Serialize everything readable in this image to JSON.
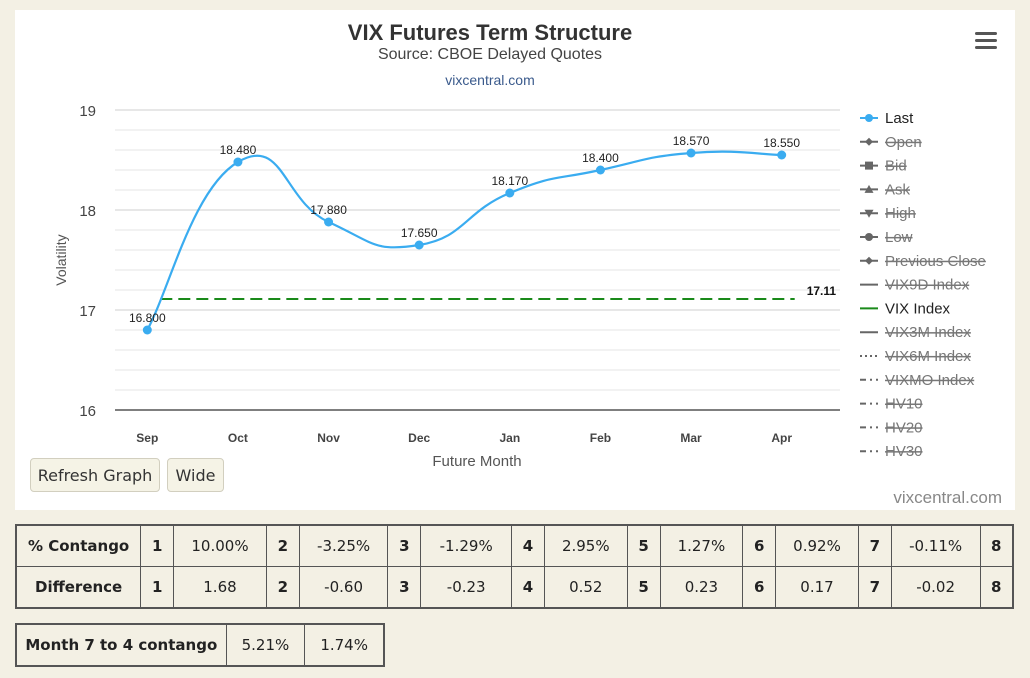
{
  "chart_data": {
    "type": "line",
    "title": "VIX Futures Term Structure",
    "subtitle": "Source: CBOE Delayed Quotes",
    "link": "vixcentral.com",
    "credit": "vixcentral.com",
    "xlabel": "Future Month",
    "ylabel": "Volatility",
    "categories": [
      "Sep",
      "Oct",
      "Nov",
      "Dec",
      "Jan",
      "Feb",
      "Mar",
      "Apr"
    ],
    "ylim": [
      16,
      19
    ],
    "yticks": [
      "16",
      "17",
      "18",
      "19"
    ],
    "grid": true,
    "series": [
      {
        "name": "Last",
        "values": [
          16.8,
          18.48,
          17.88,
          17.65,
          18.17,
          18.4,
          18.57,
          18.55
        ],
        "labels": [
          "16.800",
          "18.480",
          "17.880",
          "17.650",
          "18.170",
          "18.400",
          "18.570",
          "18.550"
        ],
        "color": "#3aacf0"
      },
      {
        "name": "VIX Index",
        "value": 17.11,
        "label": "17.11",
        "color": "#1a8a1a",
        "dashed": true
      }
    ],
    "legend": {
      "position": "right",
      "items": [
        {
          "name": "Last",
          "marker": "circle",
          "line": "solid",
          "hidden": false,
          "color": "#3aacf0"
        },
        {
          "name": "Open",
          "marker": "diamond",
          "line": "solid",
          "hidden": true,
          "color": "#666666"
        },
        {
          "name": "Bid",
          "marker": "square",
          "line": "solid",
          "hidden": true,
          "color": "#666666"
        },
        {
          "name": "Ask",
          "marker": "triangle",
          "line": "solid",
          "hidden": true,
          "color": "#666666"
        },
        {
          "name": "High",
          "marker": "triangle-down",
          "line": "solid",
          "hidden": true,
          "color": "#666666"
        },
        {
          "name": "Low",
          "marker": "circle",
          "line": "solid",
          "hidden": true,
          "color": "#666666"
        },
        {
          "name": "Previous Close",
          "marker": "diamond",
          "line": "solid",
          "hidden": true,
          "color": "#666666"
        },
        {
          "name": "VIX9D Index",
          "marker": "none",
          "line": "solid",
          "hidden": true,
          "color": "#666666"
        },
        {
          "name": "VIX Index",
          "marker": "none",
          "line": "solid",
          "hidden": false,
          "color": "#1a8a1a"
        },
        {
          "name": "VIX3M Index",
          "marker": "none",
          "line": "solid",
          "hidden": true,
          "color": "#666666"
        },
        {
          "name": "VIX6M Index",
          "marker": "none",
          "line": "dotted",
          "hidden": true,
          "color": "#666666"
        },
        {
          "name": "VIXMO Index",
          "marker": "none",
          "line": "dashdot",
          "hidden": true,
          "color": "#666666"
        },
        {
          "name": "HV10",
          "marker": "none",
          "line": "dashdot",
          "hidden": true,
          "color": "#666666"
        },
        {
          "name": "HV20",
          "marker": "none",
          "line": "dashdot",
          "hidden": true,
          "color": "#666666"
        },
        {
          "name": "HV30",
          "marker": "none",
          "line": "dashdot",
          "hidden": true,
          "color": "#666666"
        }
      ]
    }
  },
  "buttons": {
    "refresh": "Refresh Graph",
    "wide": "Wide"
  },
  "contango_table": {
    "rows": [
      {
        "label": "% Contango",
        "cells": [
          "1",
          "10.00%",
          "2",
          "-3.25%",
          "3",
          "-1.29%",
          "4",
          "2.95%",
          "5",
          "1.27%",
          "6",
          "0.92%",
          "7",
          "-0.11%",
          "8"
        ]
      },
      {
        "label": "Difference",
        "cells": [
          "1",
          "1.68",
          "2",
          "-0.60",
          "3",
          "-0.23",
          "4",
          "0.52",
          "5",
          "0.23",
          "6",
          "0.17",
          "7",
          "-0.02",
          "8"
        ]
      }
    ]
  },
  "month74_table": {
    "label": "Month 7 to 4 contango",
    "cells": [
      "5.21%",
      "1.74%"
    ]
  }
}
